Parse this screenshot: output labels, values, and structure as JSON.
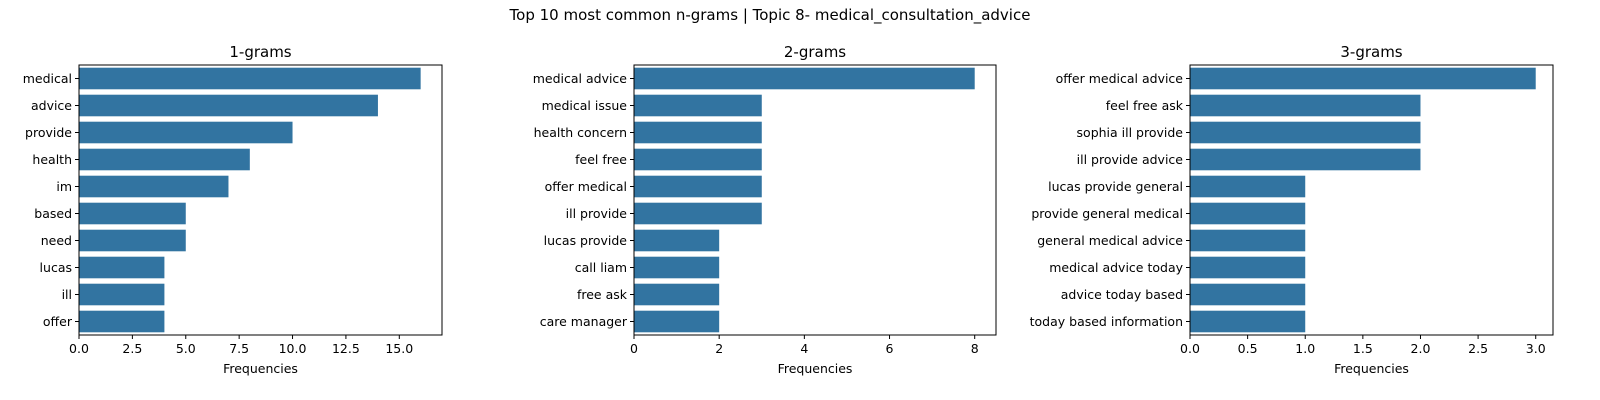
{
  "figure": {
    "title": "Top 10 most common n-grams | Topic 8- medical_consultation_advice"
  },
  "style": {
    "bar_color": "#3274a1",
    "axes_color": "#000000",
    "background": "#ffffff"
  },
  "chart_data": [
    {
      "type": "bar",
      "orientation": "horizontal",
      "title": "1-grams",
      "xlabel": "Frequencies",
      "ylabel": "",
      "categories": [
        "medical",
        "advice",
        "provide",
        "health",
        "im",
        "based",
        "need",
        "lucas",
        "ill",
        "offer"
      ],
      "values": [
        16,
        14,
        10,
        8,
        7,
        5,
        5,
        4,
        4,
        4
      ],
      "xlim": [
        0,
        17
      ],
      "xticks": [
        0,
        2.5,
        5,
        7.5,
        10,
        12.5,
        15
      ],
      "xtick_labels": [
        "0.0",
        "2.5",
        "5.0",
        "7.5",
        "10.0",
        "12.5",
        "15.0"
      ],
      "grid": false
    },
    {
      "type": "bar",
      "orientation": "horizontal",
      "title": "2-grams",
      "xlabel": "Frequencies",
      "ylabel": "",
      "categories": [
        "medical advice",
        "medical issue",
        "health concern",
        "feel free",
        "offer medical",
        "ill provide",
        "lucas provide",
        "call liam",
        "free ask",
        "care manager"
      ],
      "values": [
        8,
        3,
        3,
        3,
        3,
        3,
        2,
        2,
        2,
        2
      ],
      "xlim": [
        0,
        8.5
      ],
      "xticks": [
        0,
        2,
        4,
        6,
        8
      ],
      "xtick_labels": [
        "0",
        "2",
        "4",
        "6",
        "8"
      ],
      "grid": false
    },
    {
      "type": "bar",
      "orientation": "horizontal",
      "title": "3-grams",
      "xlabel": "Frequencies",
      "ylabel": "",
      "categories": [
        "offer medical advice",
        "feel free ask",
        "sophia ill provide",
        "ill provide advice",
        "lucas provide general",
        "provide general medical",
        "general medical advice",
        "medical advice today",
        "advice today based",
        "today based information"
      ],
      "values": [
        3,
        2,
        2,
        2,
        1,
        1,
        1,
        1,
        1,
        1
      ],
      "xlim": [
        0,
        3.15
      ],
      "xticks": [
        0,
        0.5,
        1,
        1.5,
        2,
        2.5,
        3
      ],
      "xtick_labels": [
        "0.0",
        "0.5",
        "1.0",
        "1.5",
        "2.0",
        "2.5",
        "3.0"
      ],
      "grid": false
    }
  ]
}
